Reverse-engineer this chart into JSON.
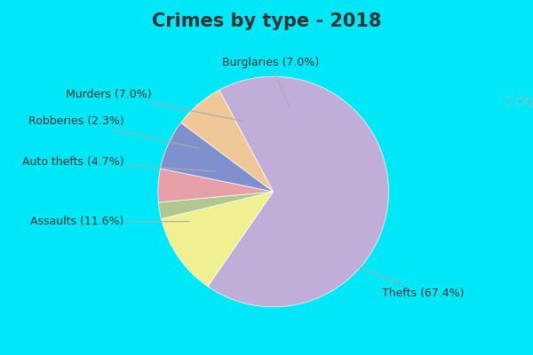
{
  "title": "Crimes by type - 2018",
  "labels": [
    "Thefts",
    "Assaults",
    "Robberies",
    "Auto thefts",
    "Murders",
    "Burglaries"
  ],
  "values": [
    67.4,
    11.6,
    2.3,
    4.7,
    7.0,
    7.0
  ],
  "colors": [
    "#c0aed8",
    "#f0f090",
    "#b0c890",
    "#e8a0a8",
    "#8090cc",
    "#f0c898"
  ],
  "label_texts": [
    "Thefts (67.4%)",
    "Assaults (11.6%)",
    "Robberies (2.3%)",
    "Auto thefts (4.7%)",
    "Murders (7.0%)",
    "Burglaries (7.0%)"
  ],
  "outer_bg": "#00e8f8",
  "title_fontsize": 15,
  "label_fontsize": 9,
  "title_color": "#333333",
  "label_color": "#333333"
}
